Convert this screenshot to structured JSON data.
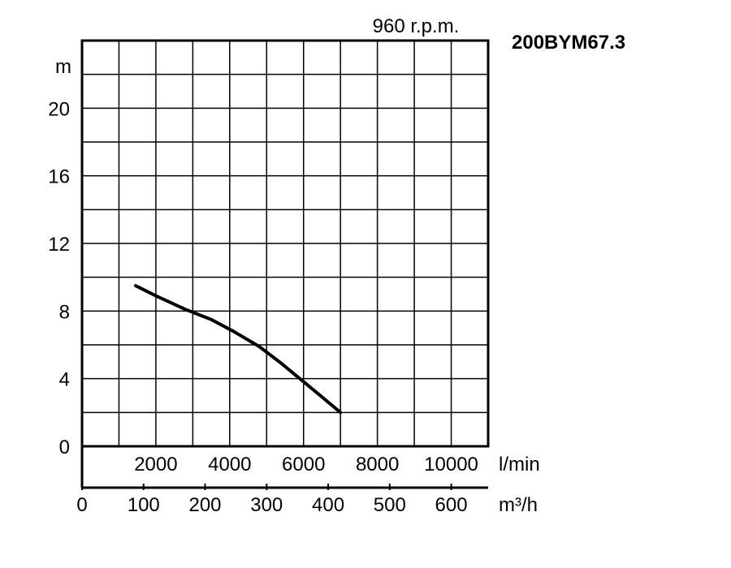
{
  "chart_data": {
    "type": "line",
    "title": "200BYM67.3",
    "subtitle": "960 r.p.m.",
    "ylabel": "m",
    "x_unit_primary": "l/min",
    "x_unit_secondary": "m³/h",
    "xlim_lmin": [
      0,
      11000
    ],
    "ylim": [
      0,
      24
    ],
    "y_ticks": [
      "0",
      "4",
      "8",
      "12",
      "16",
      "20"
    ],
    "x_ticks_lmin": [
      "2000",
      "4000",
      "6000",
      "8000",
      "10000"
    ],
    "x_ticks_m3h": [
      "0",
      "100",
      "200",
      "300",
      "400",
      "500",
      "600"
    ],
    "grid": true,
    "series": [
      {
        "x": [
          1450,
          2000,
          2800,
          3500,
          4100,
          4800,
          5400,
          5900,
          6400,
          7000
        ],
        "y": [
          9.5,
          8.9,
          8.1,
          7.5,
          6.8,
          5.9,
          4.9,
          4.0,
          3.1,
          2.0
        ]
      }
    ]
  }
}
